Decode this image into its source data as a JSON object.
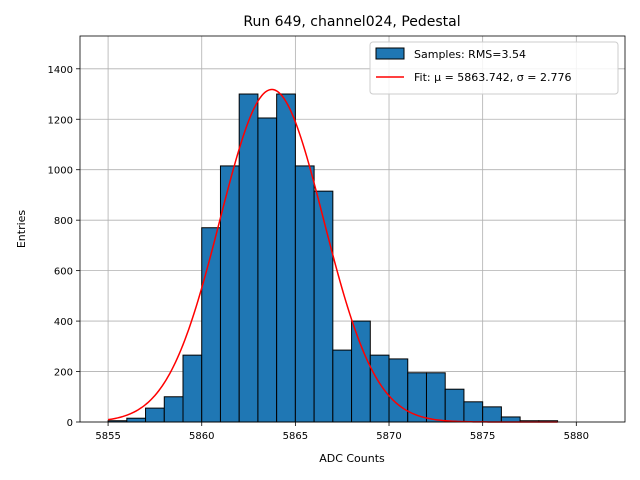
{
  "chart_data": {
    "type": "bar",
    "title": "Run 649, channel024, Pedestal",
    "xlabel": "ADC Counts",
    "ylabel": "Entries",
    "xlim": [
      5853.5,
      5882.6
    ],
    "ylim": [
      0,
      1530
    ],
    "xticks": [
      5855,
      5860,
      5865,
      5870,
      5875,
      5880
    ],
    "yticks": [
      0,
      200,
      400,
      600,
      800,
      1000,
      1200,
      1400
    ],
    "grid": true,
    "legend_position": "top-right",
    "colors": {
      "bars": "#1f77b4",
      "bar_edge": "#000000",
      "fit": "#ff0000",
      "grid": "#b0b0b0"
    },
    "series": [
      {
        "name": "Samples: RMS=3.54",
        "kind": "histogram",
        "bin_width": 1,
        "bin_starts": [
          5855,
          5856,
          5857,
          5858,
          5859,
          5860,
          5861,
          5862,
          5863,
          5864,
          5865,
          5866,
          5867,
          5868,
          5869,
          5870,
          5871,
          5872,
          5873,
          5874,
          5875,
          5876,
          5877,
          5878
        ],
        "values": [
          5,
          15,
          55,
          100,
          265,
          770,
          1015,
          1300,
          1205,
          1300,
          1015,
          915,
          285,
          400,
          265,
          250,
          195,
          195,
          130,
          80,
          60,
          20,
          5,
          5
        ]
      },
      {
        "name": "Fit: μ = 5863.742, σ = 2.776",
        "kind": "gaussian",
        "mu": 5863.742,
        "sigma": 2.776,
        "amplitude": 1318,
        "x_range": [
          5855,
          5879
        ]
      }
    ]
  }
}
